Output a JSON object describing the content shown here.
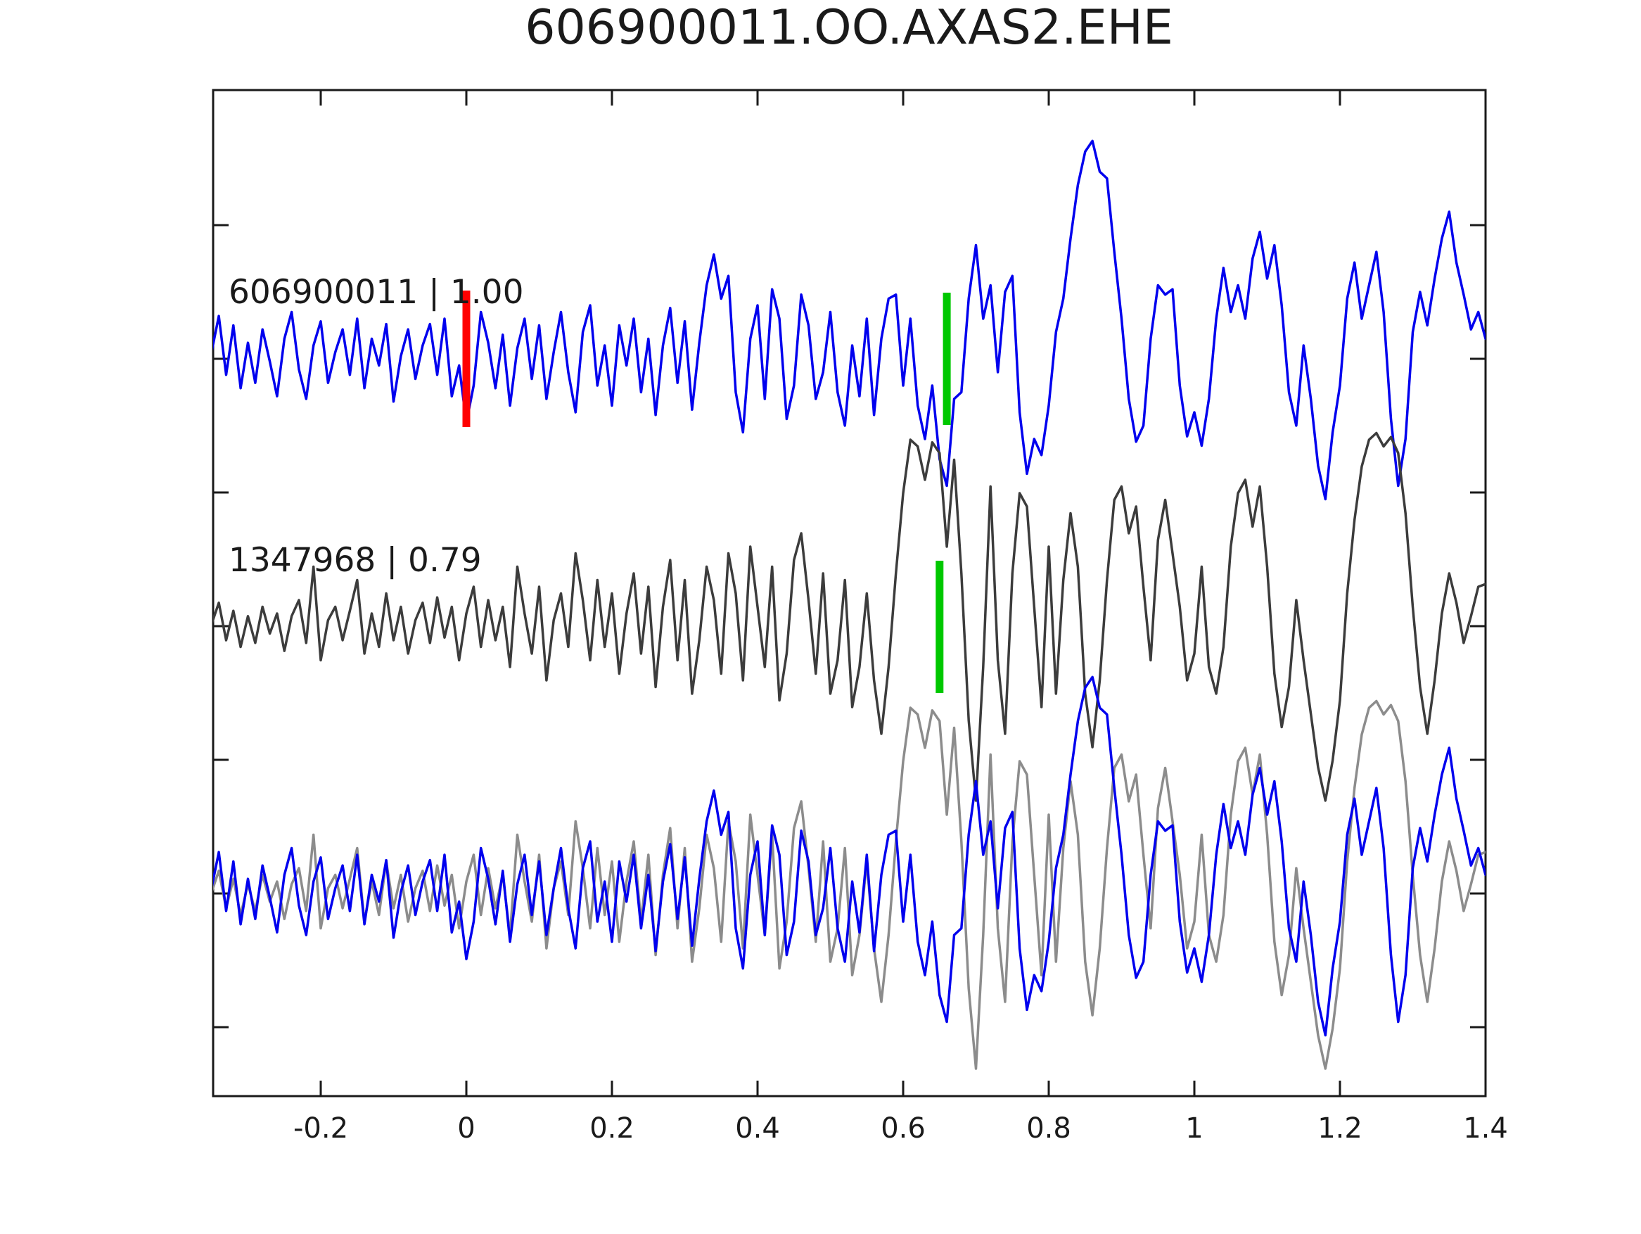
{
  "title": "606900011.OO.AXAS2.EHE",
  "traces": {
    "target_label": "606900011 | 1.00",
    "match_label": "1347968 | 0.79"
  },
  "colors": {
    "target_blue": "#0000EE",
    "match_dark": "#3C3C3C",
    "match_light": "#8C8C8C",
    "pick_red": "#FF0000",
    "pick_green": "#00C800",
    "axis": "#1a1a1a",
    "background": "#FFFFFF"
  },
  "chart_data": {
    "type": "line",
    "title": "606900011.OO.AXAS2.EHE",
    "xlabel": "",
    "ylabel": "",
    "grid": false,
    "legend": "none",
    "xlim": [
      -0.35,
      1.4
    ],
    "x_ticks": [
      -0.2,
      0,
      0.2,
      0.4,
      0.6,
      0.8,
      1,
      1.2,
      1.4
    ],
    "x_tick_labels": [
      "-0.2",
      "0",
      "0.2",
      "0.4",
      "0.6",
      "0.8",
      "1",
      "1.2",
      "1.4"
    ],
    "x_start": -0.35,
    "dx": 0.01,
    "rows": 3,
    "series": [
      {
        "name": "606900011",
        "label": "606900011 | 1.00",
        "correlation": "1.00",
        "row": 0,
        "color": "#0000EE",
        "values": [
          0.05,
          0.32,
          -0.12,
          0.25,
          -0.22,
          0.12,
          -0.18,
          0.22,
          -0.02,
          -0.28,
          0.15,
          0.35,
          -0.08,
          -0.3,
          0.1,
          0.28,
          -0.18,
          0.05,
          0.22,
          -0.12,
          0.3,
          -0.22,
          0.15,
          -0.05,
          0.26,
          -0.32,
          0.02,
          0.22,
          -0.15,
          0.1,
          0.26,
          -0.12,
          0.3,
          -0.28,
          -0.05,
          -0.48,
          -0.2,
          0.35,
          0.12,
          -0.22,
          0.18,
          -0.35,
          0.08,
          0.3,
          -0.15,
          0.25,
          -0.3,
          0.05,
          0.35,
          -0.1,
          -0.4,
          0.2,
          0.4,
          -0.2,
          0.1,
          -0.35,
          0.25,
          -0.05,
          0.3,
          -0.25,
          0.15,
          -0.42,
          0.1,
          0.38,
          -0.18,
          0.28,
          -0.38,
          0.12,
          0.55,
          0.78,
          0.45,
          0.62,
          -0.25,
          -0.55,
          0.15,
          0.4,
          -0.3,
          0.52,
          0.3,
          -0.45,
          -0.2,
          0.48,
          0.25,
          -0.3,
          -0.1,
          0.35,
          -0.25,
          -0.5,
          0.1,
          -0.28,
          0.3,
          -0.42,
          0.15,
          0.45,
          0.48,
          -0.2,
          0.3,
          -0.35,
          -0.6,
          -0.2,
          -0.75,
          -0.95,
          -0.3,
          -0.25,
          0.45,
          0.85,
          0.3,
          0.55,
          -0.1,
          0.5,
          0.62,
          -0.4,
          -0.86,
          -0.6,
          -0.72,
          -0.35,
          0.2,
          0.45,
          0.9,
          1.3,
          1.55,
          1.63,
          1.4,
          1.35,
          0.8,
          0.3,
          -0.3,
          -0.62,
          -0.5,
          0.15,
          0.55,
          0.48,
          0.52,
          -0.2,
          -0.58,
          -0.4,
          -0.65,
          -0.3,
          0.3,
          0.68,
          0.35,
          0.55,
          0.3,
          0.75,
          0.95,
          0.6,
          0.85,
          0.4,
          -0.25,
          -0.5,
          0.1,
          -0.3,
          -0.8,
          -1.05,
          -0.55,
          -0.2,
          0.45,
          0.72,
          0.3,
          0.55,
          0.8,
          0.35,
          -0.45,
          -0.95,
          -0.6,
          0.2,
          0.5,
          0.25,
          0.6,
          0.9,
          1.1,
          0.72,
          0.48,
          0.22,
          0.35,
          0.15
        ]
      },
      {
        "name": "1347968",
        "label": "1347968 | 0.79",
        "correlation": "0.79",
        "row": 1,
        "color": "#3C3C3C",
        "values": [
          0.02,
          0.18,
          -0.1,
          0.12,
          -0.15,
          0.08,
          -0.12,
          0.15,
          -0.05,
          0.1,
          -0.18,
          0.08,
          0.2,
          -0.12,
          0.45,
          -0.25,
          0.05,
          0.15,
          -0.1,
          0.12,
          0.35,
          -0.2,
          0.1,
          -0.15,
          0.25,
          -0.1,
          0.15,
          -0.2,
          0.05,
          0.18,
          -0.12,
          0.22,
          -0.08,
          0.15,
          -0.25,
          0.1,
          0.3,
          -0.15,
          0.2,
          -0.1,
          0.15,
          -0.3,
          0.45,
          0.1,
          -0.2,
          0.3,
          -0.4,
          0.05,
          0.25,
          -0.15,
          0.55,
          0.2,
          -0.25,
          0.35,
          -0.15,
          0.25,
          -0.35,
          0.1,
          0.4,
          -0.2,
          0.3,
          -0.45,
          0.15,
          0.5,
          -0.25,
          0.35,
          -0.5,
          -0.1,
          0.45,
          0.2,
          -0.35,
          0.55,
          0.25,
          -0.4,
          0.6,
          0.15,
          -0.3,
          0.45,
          -0.55,
          -0.2,
          0.5,
          0.7,
          0.2,
          -0.35,
          0.4,
          -0.5,
          -0.25,
          0.35,
          -0.6,
          -0.3,
          0.25,
          -0.4,
          -0.8,
          -0.3,
          0.4,
          1.0,
          1.4,
          1.35,
          1.1,
          1.38,
          1.3,
          0.6,
          1.25,
          0.4,
          -0.7,
          -1.3,
          -0.3,
          1.05,
          -0.25,
          -0.8,
          0.4,
          1.0,
          0.9,
          0.15,
          -0.6,
          0.6,
          -0.5,
          0.35,
          0.85,
          0.45,
          -0.5,
          -0.9,
          -0.4,
          0.35,
          0.95,
          1.05,
          0.7,
          0.9,
          0.3,
          -0.25,
          0.65,
          0.95,
          0.55,
          0.15,
          -0.4,
          -0.2,
          0.45,
          -0.3,
          -0.5,
          -0.15,
          0.6,
          1.0,
          1.1,
          0.75,
          1.05,
          0.45,
          -0.35,
          -0.75,
          -0.45,
          0.2,
          -0.25,
          -0.65,
          -1.05,
          -1.3,
          -1.0,
          -0.55,
          0.25,
          0.8,
          1.2,
          1.4,
          1.45,
          1.35,
          1.42,
          1.3,
          0.85,
          0.15,
          -0.45,
          -0.8,
          -0.4,
          0.1,
          0.4,
          0.18,
          -0.12,
          0.08,
          0.3,
          0.32
        ]
      },
      {
        "name": "overlay-match",
        "row": 2,
        "color": "#8C8C8C",
        "ref": "1347968"
      },
      {
        "name": "overlay-target",
        "row": 2,
        "color": "#0000EE",
        "ref": "606900011"
      }
    ],
    "markers": [
      {
        "name": "origin-pick",
        "row": 0,
        "t": 0.0,
        "color": "#FF0000",
        "half_height": 97,
        "width": 11
      },
      {
        "name": "target-pick",
        "row": 0,
        "t": 0.66,
        "color": "#00C800",
        "half_height": 94,
        "width": 11
      },
      {
        "name": "match-pick",
        "row": 1,
        "t": 0.65,
        "color": "#00C800",
        "half_height": 94,
        "width": 11
      }
    ]
  }
}
